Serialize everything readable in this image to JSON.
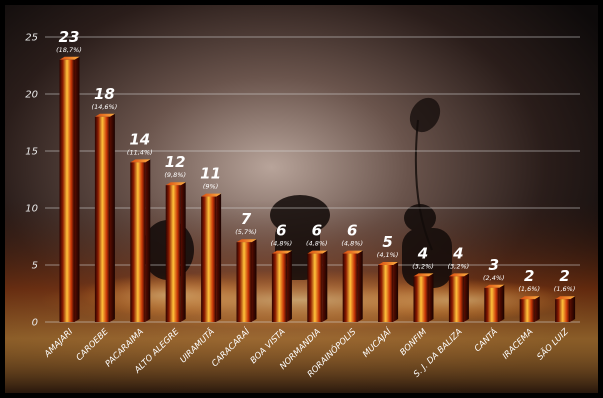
{
  "chart_data": {
    "type": "bar",
    "categories": [
      "AMAJARI",
      "CAROEBE",
      "PACARAIMA",
      "ALTO ALEGRE",
      "UIRAMUTÃ",
      "CARACARAÍ",
      "BOA VISTA",
      "NORMANDIA",
      "RORAINÓPOLIS",
      "MUCAJAÍ",
      "BONFIM",
      "S. J. DA BALIZA",
      "CANTÁ",
      "IRACEMA",
      "SÃO LUIZ"
    ],
    "values": [
      23,
      18,
      14,
      12,
      11,
      7,
      6,
      6,
      6,
      5,
      4,
      4,
      3,
      2,
      2
    ],
    "percent_labels": [
      "(18,7%)",
      "(14,6%)",
      "(11,4%)",
      "(9,8%)",
      "(9%)",
      "(5,7%)",
      "(4,8%)",
      "(4,8%)",
      "(4,8%)",
      "(4,1%)",
      "(3,2%)",
      "(3,2%)",
      "(2,4%)",
      "(1,6%)",
      "(1,6%)"
    ],
    "y_ticks": [
      "0",
      "5",
      "10",
      "15",
      "20",
      "25"
    ],
    "ylim": [
      0,
      25
    ],
    "grid": true,
    "title": "",
    "xlabel": "",
    "ylabel": "",
    "colors": {
      "bar_core": "#ffc23a",
      "bar_mid": "#d83f08",
      "bar_edge": "#2a0300",
      "grid": "#d9d9d9",
      "text": "#ffffff"
    }
  }
}
